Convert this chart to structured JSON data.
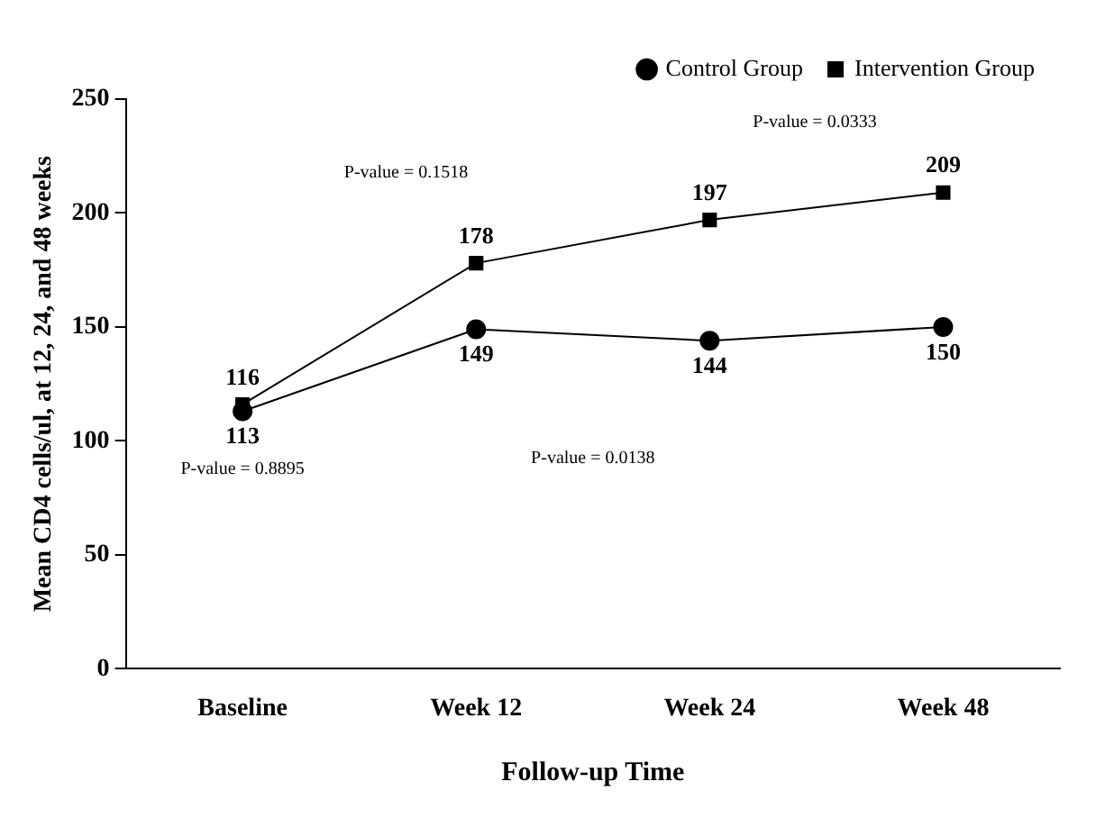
{
  "chart_data": {
    "type": "line",
    "xlabel": "Follow-up Time",
    "ylabel": "Mean CD4 cells/ul, at 12, 24, and 48 weeks",
    "categories": [
      "Baseline",
      "Week 12",
      "Week 24",
      "Week 48"
    ],
    "series": [
      {
        "name": "Control Group",
        "color": "#000000",
        "marker": "circle",
        "values": [
          113,
          149,
          144,
          150
        ]
      },
      {
        "name": "Intervention Group",
        "color": "#000000",
        "marker": "square",
        "values": [
          116,
          178,
          197,
          209
        ]
      }
    ],
    "ylim": [
      0,
      250
    ],
    "yticks": [
      0,
      50,
      100,
      150,
      200,
      250
    ],
    "grid": false,
    "legend": "top right",
    "data_labels": true,
    "line_style": "solid",
    "annotations": [
      "P-value = 0.8895",
      "P-value = 0.1518",
      "P-value = 0.0138",
      "P-value = 0.0333"
    ]
  }
}
